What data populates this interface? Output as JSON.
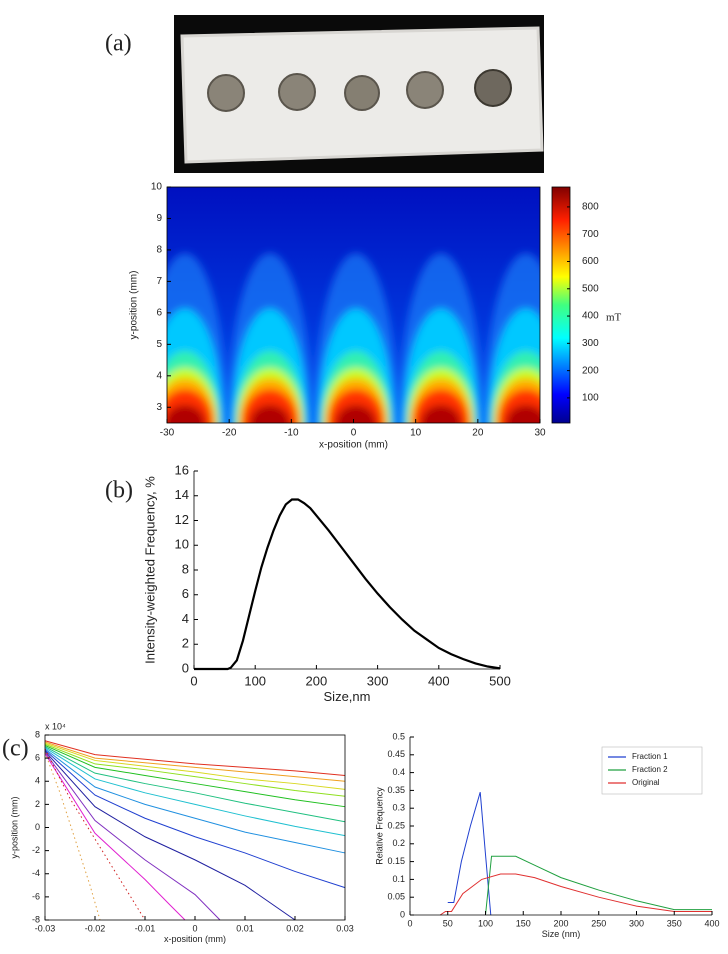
{
  "panel_labels": [
    "(a)",
    "(b)",
    "(c)"
  ],
  "chart_data": [
    {
      "type": "heatmap",
      "x_label": "x-position (mm)",
      "y_label": "y-position (mm)",
      "xlim": [
        -30,
        30
      ],
      "xticks": [
        -30,
        -20,
        -10,
        0,
        10,
        20,
        30
      ],
      "ylim": [
        2.5,
        10
      ],
      "yticks": [
        3,
        4,
        5,
        6,
        7,
        8,
        9,
        10
      ],
      "colorbar": {
        "clim": [
          8,
          873
        ],
        "ticks": [
          100,
          200,
          300,
          400,
          500,
          600,
          700,
          800
        ],
        "label": "mT"
      }
    },
    {
      "type": "line",
      "x_label": "Size,nm",
      "y_label": "Intensity-weighted Frequency, %",
      "xlim": [
        0,
        500
      ],
      "xticks": [
        0,
        100,
        200,
        300,
        400,
        500
      ],
      "ylim": [
        0,
        16
      ],
      "yticks": [
        0,
        2,
        4,
        6,
        8,
        10,
        12,
        14,
        16
      ],
      "x": [
        0,
        55,
        60,
        70,
        80,
        90,
        100,
        110,
        120,
        130,
        140,
        150,
        160,
        170,
        180,
        190,
        200,
        220,
        240,
        260,
        280,
        300,
        320,
        340,
        360,
        380,
        400,
        420,
        440,
        460,
        480,
        500
      ],
      "series": [
        {
          "color": "#000000",
          "values": [
            0,
            0,
            0.1,
            0.7,
            2.3,
            4.3,
            6.3,
            8.2,
            9.8,
            11.2,
            12.4,
            13.3,
            13.7,
            13.7,
            13.4,
            13.0,
            12.4,
            11.2,
            9.9,
            8.6,
            7.3,
            6.1,
            5.0,
            4.0,
            3.1,
            2.4,
            1.7,
            1.2,
            0.8,
            0.45,
            0.2,
            0.05
          ]
        }
      ]
    },
    {
      "type": "line",
      "x_label": "x-position (mm)",
      "y_label": "y-position (mm)",
      "y_multiplier": "x 10⁴",
      "xlim": [
        -0.03,
        0.03
      ],
      "xticks": [
        -0.03,
        -0.02,
        -0.01,
        0,
        0.01,
        0.02,
        0.03
      ],
      "ylim": [
        -8,
        8
      ],
      "yticks": [
        -8,
        -6,
        -4,
        -2,
        0,
        2,
        4,
        6,
        8
      ],
      "x": [
        -0.03,
        -0.02,
        -0.01,
        0,
        0.01,
        0.02,
        0.03
      ],
      "series": [
        {
          "color": "#e03020",
          "values": [
            7.5,
            6.3,
            5.9,
            5.5,
            5.2,
            4.9,
            4.5
          ]
        },
        {
          "color": "#f0a020",
          "values": [
            7.4,
            6.0,
            5.6,
            5.2,
            4.8,
            4.4,
            4.0
          ]
        },
        {
          "color": "#d8d820",
          "values": [
            7.3,
            5.8,
            5.3,
            4.8,
            4.2,
            3.8,
            3.3
          ]
        },
        {
          "color": "#90e020",
          "values": [
            7.2,
            5.5,
            5.0,
            4.4,
            3.8,
            3.2,
            2.7
          ]
        },
        {
          "color": "#20c020",
          "values": [
            7.1,
            5.2,
            4.5,
            3.8,
            3.1,
            2.4,
            1.8
          ]
        },
        {
          "color": "#20c080",
          "values": [
            7.0,
            4.7,
            3.8,
            3.0,
            2.1,
            1.3,
            0.5
          ]
        },
        {
          "color": "#20c0d0",
          "values": [
            6.9,
            4.2,
            3.0,
            2.0,
            1.0,
            0.1,
            -0.7
          ]
        },
        {
          "color": "#2090e0",
          "values": [
            6.8,
            3.5,
            2.0,
            0.8,
            -0.4,
            -1.3,
            -2.2
          ]
        },
        {
          "color": "#2040d0",
          "values": [
            6.7,
            2.8,
            0.8,
            -0.8,
            -2.2,
            -3.8,
            -5.2
          ]
        },
        {
          "color": "#2020a0",
          "x": [
            -0.03,
            -0.02,
            -0.01,
            0,
            0.01,
            0.02
          ],
          "values": [
            6.6,
            1.8,
            -0.8,
            -2.8,
            -5.0,
            -8
          ]
        },
        {
          "color": "#8030c0",
          "x": [
            -0.03,
            -0.02,
            -0.01,
            0,
            0.005
          ],
          "values": [
            6.5,
            0.6,
            -2.8,
            -5.8,
            -8
          ]
        },
        {
          "color": "#e020d0",
          "x": [
            -0.03,
            -0.02,
            -0.01,
            -0.005,
            -0.002
          ],
          "values": [
            6.4,
            -0.5,
            -4.5,
            -6.7,
            -8
          ]
        },
        {
          "color": "#d02020",
          "linestyle": "dotted",
          "x": [
            -0.03,
            -0.025,
            -0.02,
            -0.015,
            -0.01
          ],
          "values": [
            6.8,
            2.5,
            -1,
            -4.5,
            -8
          ]
        },
        {
          "color": "#e0a040",
          "linestyle": "dotted",
          "x": [
            -0.03,
            -0.027,
            -0.024,
            -0.021,
            -0.019
          ],
          "values": [
            6.5,
            3,
            -1,
            -5,
            -8
          ]
        }
      ]
    },
    {
      "type": "line",
      "x_label": "Size (nm)",
      "y_label": "Relative Frequency",
      "legend": "upper right",
      "xlim": [
        0,
        400
      ],
      "xticks": [
        0,
        50,
        100,
        150,
        200,
        250,
        300,
        350,
        400
      ],
      "ylim": [
        0,
        0.5
      ],
      "yticks": [
        0,
        0.05,
        0.1,
        0.15,
        0.2,
        0.25,
        0.3,
        0.35,
        0.4,
        0.45,
        0.5
      ],
      "series": [
        {
          "name": "Fraction 1",
          "color": "#2040d0",
          "x": [
            50,
            58,
            68,
            80,
            93,
            100,
            107
          ],
          "values": [
            0.035,
            0.035,
            0.15,
            0.25,
            0.345,
            0.17,
            0
          ]
        },
        {
          "name": "Fraction 2",
          "color": "#20a040",
          "x": [
            100,
            108,
            140,
            165,
            200,
            250,
            300,
            350,
            400
          ],
          "values": [
            0,
            0.165,
            0.165,
            0.14,
            0.105,
            0.07,
            0.04,
            0.015,
            0.015
          ]
        },
        {
          "name": "Original",
          "color": "#e03030",
          "x": [
            40,
            47,
            55,
            70,
            95,
            120,
            140,
            165,
            200,
            250,
            300,
            350,
            400
          ],
          "values": [
            0,
            0.01,
            0.01,
            0.06,
            0.1,
            0.115,
            0.115,
            0.105,
            0.08,
            0.05,
            0.025,
            0.01,
            0.01
          ]
        }
      ]
    }
  ]
}
